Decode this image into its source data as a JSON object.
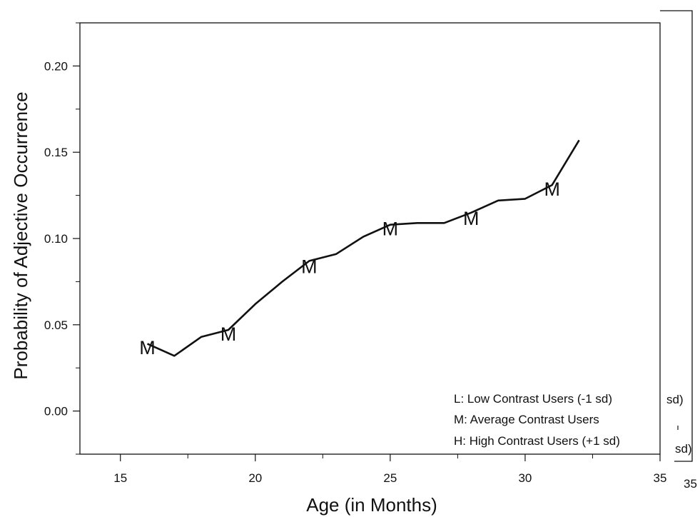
{
  "chart_data": {
    "type": "line",
    "xlabel": "Age (in Months)",
    "ylabel": "Probability of Adjective Occurrence",
    "xlim": [
      13.5,
      35
    ],
    "ylim": [
      -0.025,
      0.225
    ],
    "x_ticks": [
      "15",
      "20",
      "25",
      "30",
      "35"
    ],
    "y_ticks": [
      "0.00",
      "0.05",
      "0.10",
      "0.15",
      "0.20"
    ],
    "series": [
      {
        "name": "M: Average Contrast Users",
        "x": [
          16,
          17,
          18,
          19,
          20,
          21,
          22,
          23,
          24,
          25,
          26,
          27,
          28,
          29,
          30,
          31,
          32
        ],
        "y": [
          0.039,
          0.032,
          0.043,
          0.047,
          0.062,
          0.075,
          0.087,
          0.091,
          0.101,
          0.108,
          0.109,
          0.109,
          0.115,
          0.122,
          0.123,
          0.131,
          0.157
        ],
        "marker_label": "M",
        "marker_x": [
          16,
          19,
          22,
          25,
          28,
          31
        ],
        "marker_y": [
          0.037,
          0.045,
          0.084,
          0.106,
          0.112,
          0.129
        ]
      }
    ],
    "legend": [
      "L: Low Contrast Users (-1 sd)",
      "M: Average Contrast Users",
      "H: High Contrast Users (+1 sd)"
    ],
    "legend_position": "bottom-right",
    "grid": false,
    "color": "#111111",
    "background_fragments": [
      "sd)",
      "sd)",
      "35"
    ]
  }
}
